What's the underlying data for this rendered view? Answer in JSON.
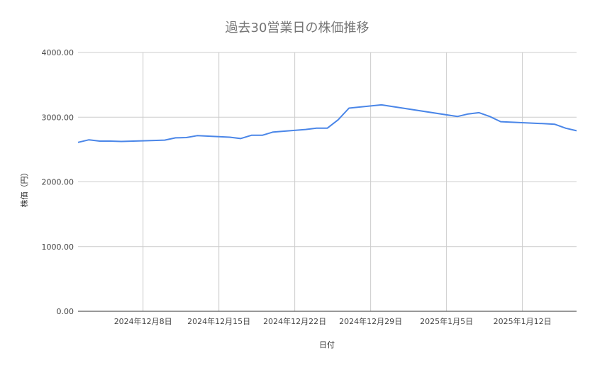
{
  "chart_data": {
    "type": "line",
    "title": "過去30営業日の株価推移",
    "xlabel": "日付",
    "ylabel": "株価（円）",
    "ylim": [
      0,
      4000
    ],
    "yticks": [
      "0.00",
      "1000.00",
      "2000.00",
      "3000.00",
      "4000.00"
    ],
    "xticks": [
      {
        "date": "2024-12-08",
        "label": "2024年12月8日"
      },
      {
        "date": "2024-12-15",
        "label": "2024年12月15日"
      },
      {
        "date": "2024-12-22",
        "label": "2024年12月22日"
      },
      {
        "date": "2024-12-29",
        "label": "2024年12月29日"
      },
      {
        "date": "2025-01-05",
        "label": "2025年1月5日"
      },
      {
        "date": "2025-01-12",
        "label": "2025年1月12日"
      }
    ],
    "xlim": [
      "2024-12-02",
      "2025-01-17"
    ],
    "grid": true,
    "line_color": "#4a86e8",
    "x": [
      "2024-12-02",
      "2024-12-03",
      "2024-12-04",
      "2024-12-05",
      "2024-12-06",
      "2024-12-09",
      "2024-12-10",
      "2024-12-11",
      "2024-12-12",
      "2024-12-13",
      "2024-12-16",
      "2024-12-17",
      "2024-12-18",
      "2024-12-19",
      "2024-12-20",
      "2024-12-23",
      "2024-12-24",
      "2024-12-25",
      "2024-12-26",
      "2024-12-27",
      "2024-12-30",
      "2025-01-06",
      "2025-01-07",
      "2025-01-08",
      "2025-01-09",
      "2025-01-10",
      "2025-01-14",
      "2025-01-15",
      "2025-01-16",
      "2025-01-17"
    ],
    "series": [
      {
        "values": [
          2610,
          2650,
          2630,
          2630,
          2625,
          2640,
          2645,
          2680,
          2685,
          2715,
          2690,
          2670,
          2720,
          2720,
          2770,
          2810,
          2830,
          2830,
          2960,
          3140,
          3190,
          3010,
          3050,
          3070,
          3010,
          2930,
          2900,
          2890,
          2830,
          2790
        ]
      }
    ]
  }
}
